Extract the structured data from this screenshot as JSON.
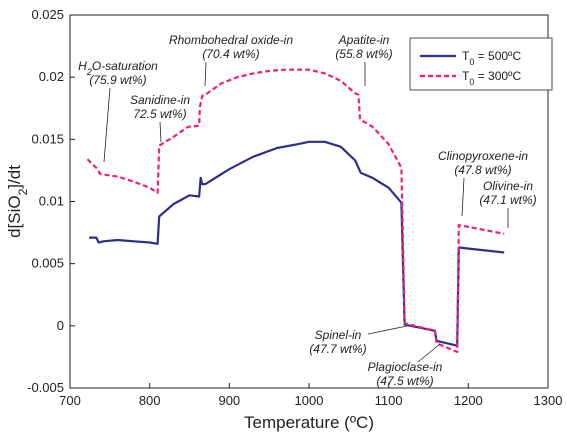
{
  "chart_data": {
    "type": "line",
    "xlabel": "Temperature (ºC)",
    "ylabel": "d[SiO2]/dt",
    "xlim": [
      700,
      1300
    ],
    "ylim": [
      -0.005,
      0.025
    ],
    "x_ticks": [
      700,
      800,
      900,
      1000,
      1100,
      1200,
      1300
    ],
    "y_ticks": [
      {
        "value": -0.005,
        "label": "-0.005"
      },
      {
        "value": 0,
        "label": "0"
      },
      {
        "value": 0.005,
        "label": "0.005"
      },
      {
        "value": 0.01,
        "label": "0.01"
      },
      {
        "value": 0.015,
        "label": "0.015"
      },
      {
        "value": 0.02,
        "label": "0.02"
      },
      {
        "value": 0.025,
        "label": "0.025"
      }
    ],
    "grid": false,
    "legend_position": "top-right",
    "series": [
      {
        "name": "T0 = 500ºC",
        "color": "#2b2f8c",
        "style": "solid",
        "x": [
          724,
          733,
          736,
          742,
          760,
          780,
          800,
          810,
          812,
          830,
          850,
          862,
          864,
          866,
          870,
          900,
          930,
          960,
          985,
          1000,
          1020,
          1040,
          1058,
          1065,
          1080,
          1100,
          1116,
          1120,
          1158,
          1160,
          1186,
          1188,
          1245
        ],
        "y": [
          0.0071,
          0.0071,
          0.0067,
          0.0068,
          0.0069,
          0.0068,
          0.0067,
          0.0066,
          0.0088,
          0.0098,
          0.0105,
          0.0104,
          0.0119,
          0.0114,
          0.0114,
          0.0126,
          0.0136,
          0.0143,
          0.0146,
          0.0148,
          0.0148,
          0.0144,
          0.0133,
          0.0123,
          0.0119,
          0.0111,
          0.0099,
          0.0001,
          -0.0004,
          -0.0012,
          -0.0016,
          0.0063,
          0.0059
        ]
      },
      {
        "name": "T0 = 300ºC",
        "color": "#f0207a",
        "style": "dashed",
        "x": [
          722,
          733,
          738,
          760,
          780,
          800,
          810,
          812,
          830,
          848,
          862,
          863,
          866,
          870,
          890,
          910,
          930,
          950,
          970,
          985,
          1000,
          1020,
          1040,
          1058,
          1062,
          1064,
          1080,
          1100,
          1116,
          1120,
          1158,
          1160,
          1186,
          1188,
          1245
        ],
        "y": [
          0.0134,
          0.0127,
          0.0122,
          0.012,
          0.0116,
          0.0111,
          0.0107,
          0.0145,
          0.0152,
          0.016,
          0.0161,
          0.0176,
          0.0185,
          0.0186,
          0.0195,
          0.02,
          0.0203,
          0.0205,
          0.0206,
          0.0206,
          0.0206,
          0.0203,
          0.0197,
          0.0187,
          0.0186,
          0.0166,
          0.016,
          0.0146,
          0.0127,
          0.0002,
          -0.0004,
          -0.0014,
          -0.0021,
          0.0081,
          0.0074
        ]
      }
    ],
    "annotations": [
      {
        "line1": "H2O-saturation",
        "line2": "(75.9 wt%)"
      },
      {
        "line1": "Rhombohedral oxide-in",
        "line2": "(70.4 wt%)"
      },
      {
        "line1": "Sanidine-in",
        "line2": "72.5 wt%)"
      },
      {
        "line1": "Apatite-in",
        "line2": "(55.8 wt%)"
      },
      {
        "line1": "Clinopyroxene-in",
        "line2": "(47.8 wt%)"
      },
      {
        "line1": "Olivine-in",
        "line2": "(47.1 wt%)"
      },
      {
        "line1": "Spinel-in",
        "line2": "(47.7 wt%)"
      },
      {
        "line1": "Plagioclase-in",
        "line2": "(47.5 wt%)"
      }
    ]
  }
}
